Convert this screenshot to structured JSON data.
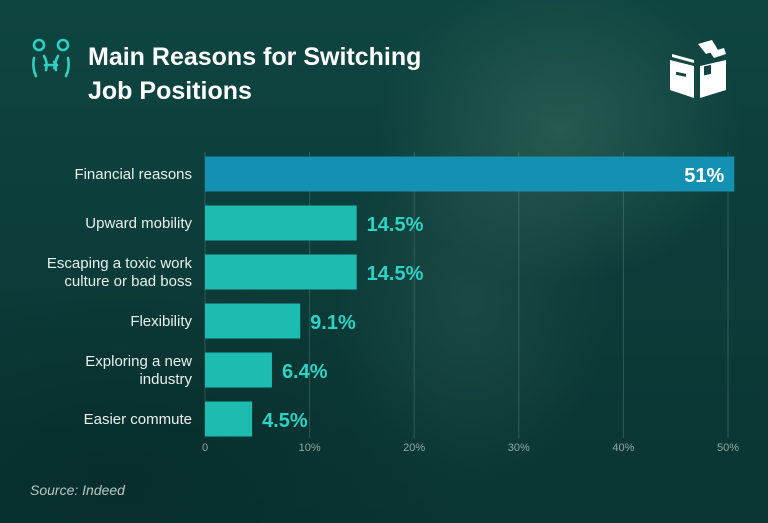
{
  "header": {
    "title_line1": "Main Reasons for Switching",
    "title_line2": "Job Positions"
  },
  "footer": {
    "source": "Source: Indeed"
  },
  "colors": {
    "highlight_bar": "#1490b2",
    "bar": "#1cbcb0",
    "value_label": "#2ed3c3"
  },
  "chart_data": {
    "type": "bar",
    "orientation": "horizontal",
    "categories": [
      [
        "Financial reasons"
      ],
      [
        "Upward mobility"
      ],
      [
        "Escaping a toxic work",
        "culture or bad boss"
      ],
      [
        "Flexibility"
      ],
      [
        "Exploring a new",
        "industry"
      ],
      [
        "Easier commute"
      ]
    ],
    "values": [
      51,
      14.5,
      14.5,
      9.1,
      6.4,
      4.5
    ],
    "value_labels": [
      "51%",
      "14.5%",
      "14.5%",
      "9.1%",
      "6.4%",
      "4.5%"
    ],
    "xlim": [
      0,
      50
    ],
    "xticks": [
      "0",
      "10%",
      "20%",
      "30%",
      "40%",
      "50%"
    ],
    "grid": "vertical",
    "highlight_index": 0
  }
}
